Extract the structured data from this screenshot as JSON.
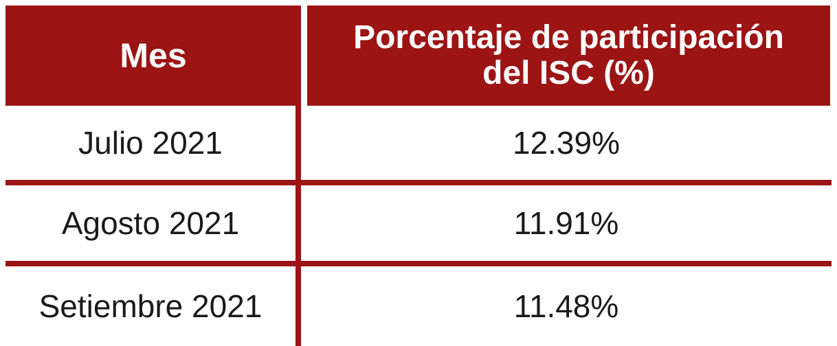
{
  "chart_data": {
    "type": "table",
    "columns": [
      "Mes",
      "Porcentaje de participación del ISC (%)"
    ],
    "rows": [
      {
        "mes": "Julio 2021",
        "porcentaje": "12.39%",
        "value": 12.39
      },
      {
        "mes": "Agosto 2021",
        "porcentaje": "11.91%",
        "value": 11.91
      },
      {
        "mes": "Setiembre 2021",
        "porcentaje": "11.48%",
        "value": 11.48
      }
    ]
  },
  "colors": {
    "header_bg": "#9c1414",
    "header_text": "#ffffff",
    "body_text": "#1a1a1a"
  }
}
